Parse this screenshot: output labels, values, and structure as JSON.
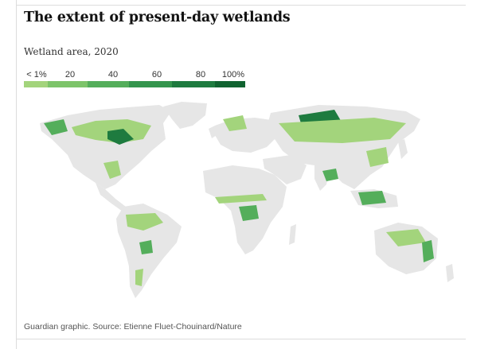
{
  "title": "The extent of present-day wetlands",
  "subtitle": "Wetland area, 2020",
  "legend": {
    "labels": [
      "< 1%",
      "20",
      "40",
      "60",
      "80",
      "100%"
    ],
    "colors": [
      "#e6e6e6",
      "#a3d47c",
      "#7dc46a",
      "#54ae5b",
      "#34954d",
      "#1e7b3f",
      "#106330"
    ]
  },
  "source": "Guardian graphic. Source: Etienne Fluet-Chouinard/Nature",
  "colors": {
    "land": "#e6e6e6",
    "wet_low": "#a3d47c",
    "wet_mid": "#54ae5b",
    "wet_high": "#1e7b3f"
  }
}
